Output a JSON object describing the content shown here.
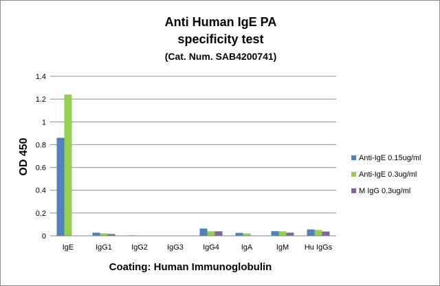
{
  "chart_data": {
    "type": "bar",
    "title": "Anti Human IgE PA",
    "title_line2": "specificity test",
    "subtitle": "(Cat. Num. SAB4200741)",
    "xlabel": "Coating:  Human  Immunoglobulin",
    "ylabel": "OD 450",
    "ylim": [
      0,
      1.4
    ],
    "yticks": [
      "0",
      "0.2",
      "0.4",
      "0.6",
      "0.8",
      "1",
      "1.2",
      "1.4"
    ],
    "grid": true,
    "legend_position": "right",
    "categories": [
      "IgE",
      "IgG1",
      "IgG2",
      "IgG3",
      "IgG4",
      "IgA",
      "IgM",
      "Hu IgGs"
    ],
    "series": [
      {
        "name": "Anti-IgE 0.15ug/ml",
        "color": "#4f81bd",
        "values": [
          0.86,
          0.028,
          0.004,
          0.003,
          0.064,
          0.026,
          0.041,
          0.056
        ]
      },
      {
        "name": "Anti-IgE 0.3ug/ml",
        "color": "#92d050",
        "values": [
          1.24,
          0.022,
          0.003,
          0.003,
          0.04,
          0.02,
          0.04,
          0.052
        ]
      },
      {
        "name": "M IgG 0.3ug/ml",
        "color": "#8064a2",
        "values": [
          null,
          0.016,
          0.002,
          0.002,
          0.04,
          null,
          0.028,
          0.038
        ]
      }
    ]
  }
}
